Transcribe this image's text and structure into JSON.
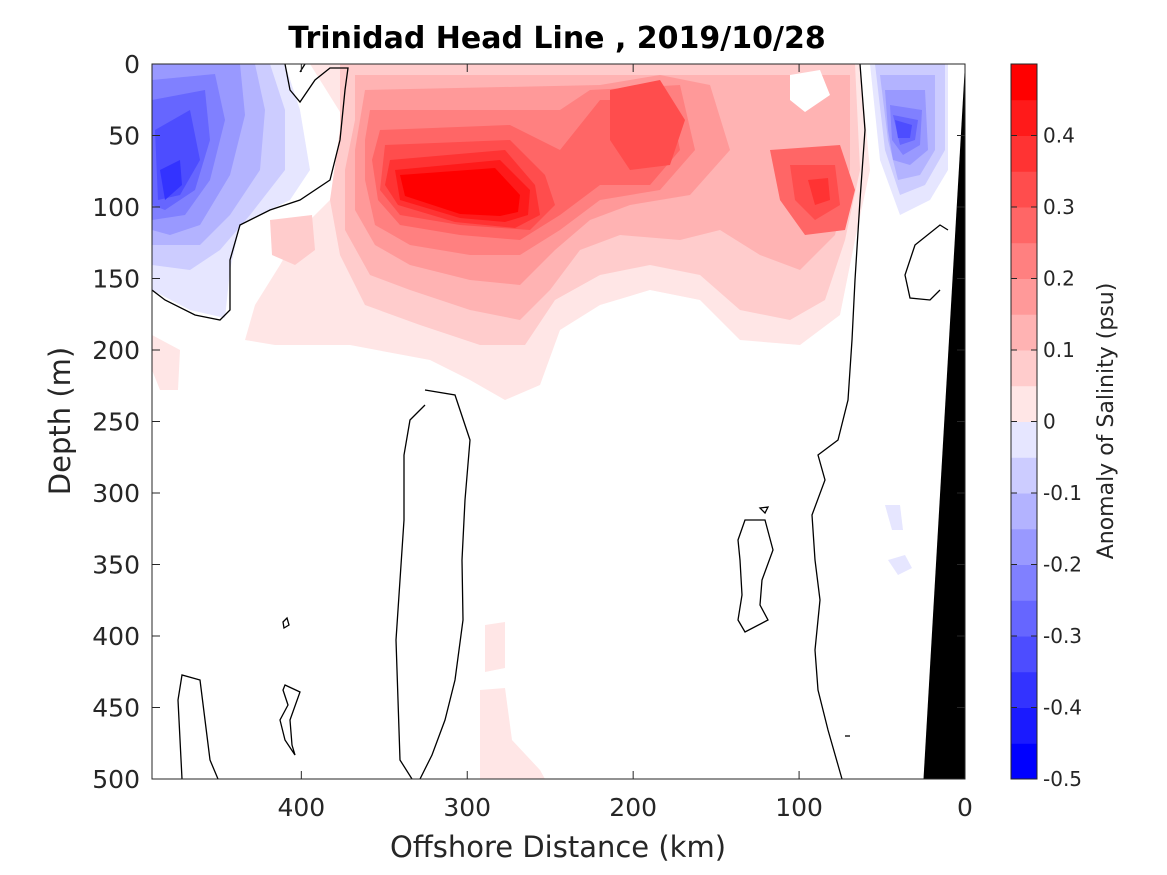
{
  "chart_data": {
    "type": "heatmap",
    "title": "Trinidad Head Line , 2019/10/28",
    "xlabel": "Offshore Distance (km)",
    "ylabel": "Depth (m)",
    "colorbar_label": "Anomaly of Salinity (psu)",
    "xlim": [
      490,
      0
    ],
    "ylim": [
      0,
      500
    ],
    "x_ticks": [
      "400",
      "300",
      "200",
      "100",
      "0"
    ],
    "y_ticks": [
      "0",
      "50",
      "100",
      "150",
      "200",
      "250",
      "300",
      "350",
      "400",
      "450",
      "500"
    ],
    "colorbar_ticks": [
      "0.4",
      "0.3",
      "0.2",
      "0.1",
      "0",
      "-0.1",
      "-0.2",
      "-0.3",
      "-0.4",
      "-0.5"
    ],
    "clim": [
      -0.5,
      0.5
    ],
    "levels": [
      -0.5,
      -0.45,
      -0.4,
      -0.35,
      -0.3,
      -0.25,
      -0.2,
      -0.15,
      -0.1,
      -0.05,
      0.05,
      0.1,
      0.15,
      0.2,
      0.25,
      0.3,
      0.35,
      0.4,
      0.45,
      0.5
    ],
    "colorbar_colors": [
      "#0000ff",
      "#1a1aff",
      "#3333ff",
      "#4d4dff",
      "#6666ff",
      "#8080ff",
      "#9999ff",
      "#b3b3ff",
      "#ccccff",
      "#e6e6ff",
      "#ffffff",
      "#ffffff",
      "#ffe6e6",
      "#ffcccc",
      "#ffb3b3",
      "#ff9999",
      "#ff8080",
      "#ff6666",
      "#ff4d4d",
      "#ff3333",
      "#ff1a1a",
      "#ff0000"
    ],
    "features": [
      {
        "type": "anomaly_blob",
        "x": 465,
        "y": 85,
        "value": -0.45,
        "rx": 40,
        "ry": 65
      },
      {
        "type": "anomaly_blob",
        "x": 430,
        "y": 45,
        "value": -0.3,
        "rx": 30,
        "ry": 35
      },
      {
        "type": "anomaly_blob",
        "x": 38,
        "y": 40,
        "value": -0.45,
        "rx": 15,
        "ry": 30
      },
      {
        "type": "anomaly_blob",
        "x": 308,
        "y": 95,
        "value": 0.5,
        "rx": 45,
        "ry": 30
      },
      {
        "type": "anomaly_blob",
        "x": 280,
        "y": 100,
        "value": 0.5,
        "rx": 20,
        "ry": 25
      },
      {
        "type": "anomaly_blob",
        "x": 185,
        "y": 40,
        "value": 0.35,
        "rx": 25,
        "ry": 35
      },
      {
        "type": "anomaly_blob",
        "x": 85,
        "y": 90,
        "value": 0.3,
        "rx": 20,
        "ry": 35
      },
      {
        "type": "anomaly_blob",
        "x": 280,
        "y": 440,
        "value": 0.1,
        "rx": 10,
        "ry": 60
      }
    ],
    "bathymetry": {
      "fill": "#000000",
      "points": [
        [
          0,
          0
        ],
        [
          0,
          500
        ],
        [
          25,
          500
        ]
      ]
    }
  }
}
